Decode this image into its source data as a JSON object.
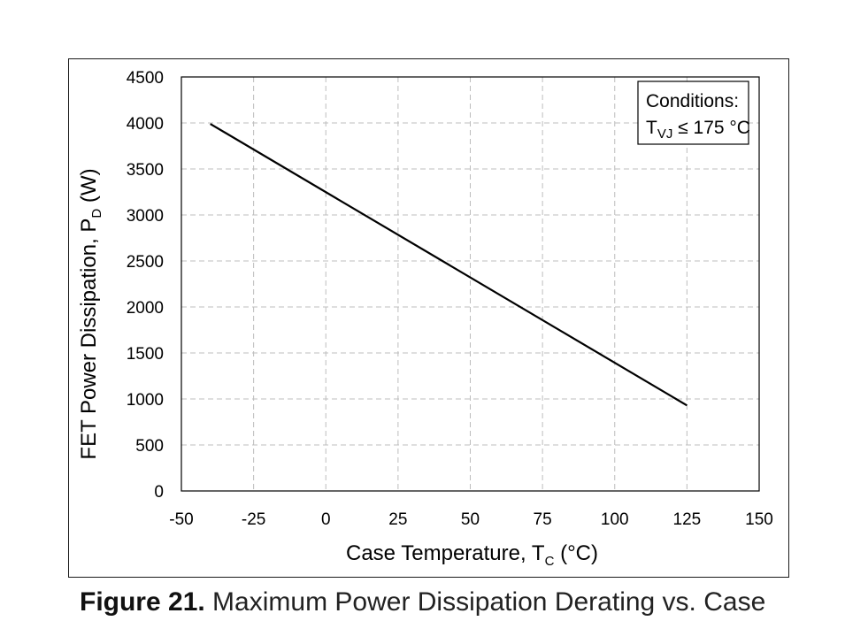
{
  "chart_data": {
    "type": "line",
    "xlabel": {
      "main": "Case Temperature, T",
      "sub": "C",
      "suffix": " (°C)"
    },
    "ylabel": {
      "main": "FET Power Dissipation, P",
      "sub": "D",
      "suffix": " (W)"
    },
    "xlim": [
      -50,
      150
    ],
    "ylim": [
      0,
      4500
    ],
    "xticks": [
      -50,
      -25,
      0,
      25,
      50,
      75,
      100,
      125,
      150
    ],
    "yticks": [
      0,
      500,
      1000,
      1500,
      2000,
      2500,
      3000,
      3500,
      4000,
      4500
    ],
    "grid": true,
    "series": [
      {
        "x": [
          -40,
          125
        ],
        "y": [
          3990,
          930
        ],
        "color": "#000000"
      }
    ],
    "annotation": {
      "line1": "Conditions:",
      "line2_main": "T",
      "line2_sub": "VJ",
      "line2_rest": " ≤ 175 °C",
      "position": "top-right"
    }
  },
  "caption": {
    "label": "Figure 21.",
    "text": " Maximum Power Dissipation Derating vs. Case"
  }
}
